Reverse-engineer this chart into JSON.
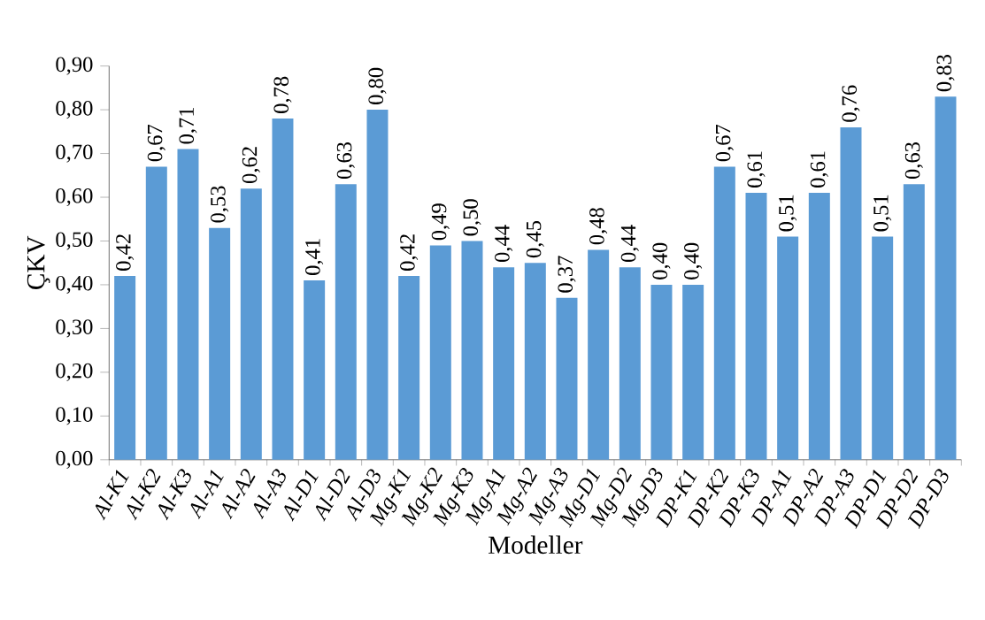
{
  "chart_data": {
    "type": "bar",
    "xlabel": "Modeller",
    "ylabel": "ÇKV",
    "categories": [
      "Al-K1",
      "Al-K2",
      "Al-K3",
      "Al-A1",
      "Al-A2",
      "Al-A3",
      "Al-D1",
      "Al-D2",
      "Al-D3",
      "Mg-K1",
      "Mg-K2",
      "Mg-K3",
      "Mg-A1",
      "Mg-A2",
      "Mg-A3",
      "Mg-D1",
      "Mg-D2",
      "Mg-D3",
      "DP-K1",
      "DP-K2",
      "DP-K3",
      "DP-A1",
      "DP-A2",
      "DP-A3",
      "DP-D1",
      "DP-D2",
      "DP-D3"
    ],
    "values": [
      0.42,
      0.67,
      0.71,
      0.53,
      0.62,
      0.78,
      0.41,
      0.63,
      0.8,
      0.42,
      0.49,
      0.5,
      0.44,
      0.45,
      0.37,
      0.48,
      0.44,
      0.4,
      0.4,
      0.67,
      0.61,
      0.51,
      0.61,
      0.76,
      0.51,
      0.63,
      0.83
    ],
    "value_labels": [
      "0,42",
      "0,67",
      "0,71",
      "0,53",
      "0,62",
      "0,78",
      "0,41",
      "0,63",
      "0,80",
      "0,42",
      "0,49",
      "0,50",
      "0,44",
      "0,45",
      "0,37",
      "0,48",
      "0,44",
      "0,40",
      "0,40",
      "0,67",
      "0,61",
      "0,51",
      "0,61",
      "0,76",
      "0,51",
      "0,63",
      "0,83"
    ],
    "color": "#5b9bd5",
    "ylim": [
      0,
      0.9
    ],
    "yticks": [
      {
        "value": 0,
        "label": "0,00"
      },
      {
        "value": 0.1,
        "label": "0,10"
      },
      {
        "value": 0.2,
        "label": "0,20"
      },
      {
        "value": 0.3,
        "label": "0,30"
      },
      {
        "value": 0.4,
        "label": "0,40"
      },
      {
        "value": 0.5,
        "label": "0,50"
      },
      {
        "value": 0.6,
        "label": "0,60"
      },
      {
        "value": 0.7,
        "label": "0,70"
      },
      {
        "value": 0.8,
        "label": "0,80"
      },
      {
        "value": 0.9,
        "label": "0,90"
      }
    ],
    "grid": false
  }
}
